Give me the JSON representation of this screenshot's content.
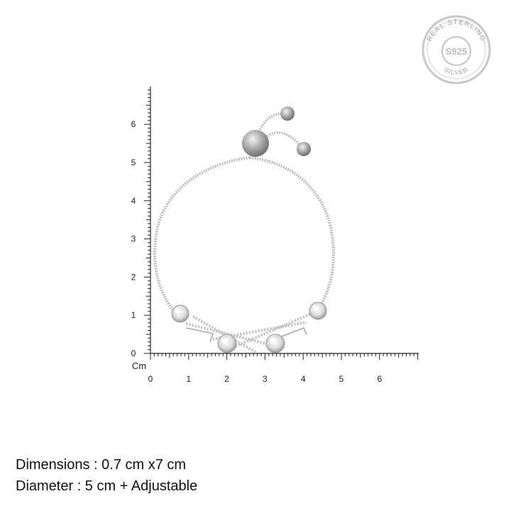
{
  "scale": {
    "unit_label": "Cm",
    "x_ticks": [
      "0",
      "1",
      "2",
      "3",
      "4",
      "5",
      "6"
    ],
    "y_ticks": [
      "0",
      "1",
      "2",
      "3",
      "4",
      "5",
      "6"
    ]
  },
  "seal": {
    "top_text": "REAL STERLING",
    "center_text": "S925",
    "bottom_text": "SILVER",
    "color": "#c4c4c4"
  },
  "product": {
    "name": "bracelet-photo",
    "chain_color": "#b8b8b8",
    "stone_color": "#e6e6e6"
  },
  "captions": {
    "dimensions": "Dimensions : 0.7 cm x7 cm",
    "diameter": "Diameter : 5 cm + Adjustable"
  }
}
